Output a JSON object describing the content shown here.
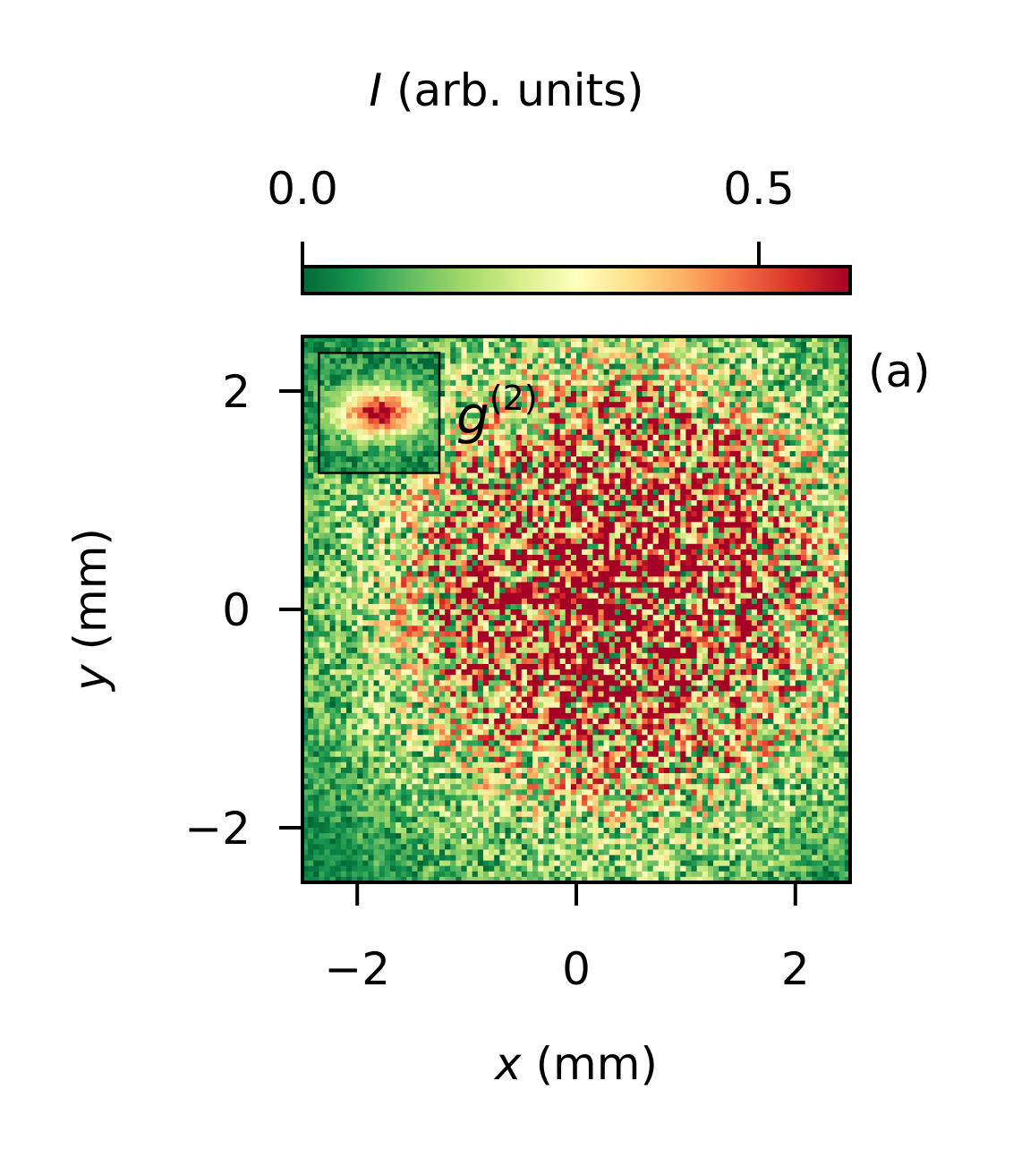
{
  "chart_data": {
    "type": "heatmap",
    "title": "",
    "xlabel": {
      "var": "x",
      "unit": " (mm)"
    },
    "ylabel": {
      "var": "y",
      "unit": " (mm)"
    },
    "xlim": [
      -2.5,
      2.5
    ],
    "ylim": [
      -2.5,
      2.5
    ],
    "x_ticks": [
      {
        "value": -2,
        "label": "−2"
      },
      {
        "value": 0,
        "label": "0"
      },
      {
        "value": 2,
        "label": "2"
      }
    ],
    "y_ticks": [
      {
        "value": 2,
        "label": "2"
      },
      {
        "value": 0,
        "label": "0"
      },
      {
        "value": -2,
        "label": "−2"
      }
    ],
    "grid": false,
    "colorbar": {
      "label": {
        "var": "I",
        "unit": " (arb. units)"
      },
      "position": "top",
      "range": [
        0.0,
        0.6
      ],
      "ticks": [
        {
          "value": 0.0,
          "label": "0.0"
        },
        {
          "value": 0.5,
          "label": "0.5"
        }
      ],
      "colormap": "RdYlGn_r",
      "stops": [
        "#006837",
        "#1a9850",
        "#66bd63",
        "#a6d96a",
        "#d9ef8b",
        "#ffffbf",
        "#fee08b",
        "#fdae61",
        "#f46d43",
        "#d73027",
        "#a50026"
      ]
    },
    "intensity_model": {
      "grid_size": 100,
      "center": [
        0.4,
        0.2
      ],
      "sigma_mm": 1.6,
      "peak": 0.6,
      "noise_fraction": 0.8
    },
    "inset": {
      "label": "g",
      "superscript": "(2)",
      "x_range_mm": [
        -2.35,
        -1.25
      ],
      "y_range_mm": [
        1.25,
        2.35
      ],
      "peak_center_mm": [
        -1.8,
        1.8
      ]
    },
    "panel_label": "(a)"
  }
}
